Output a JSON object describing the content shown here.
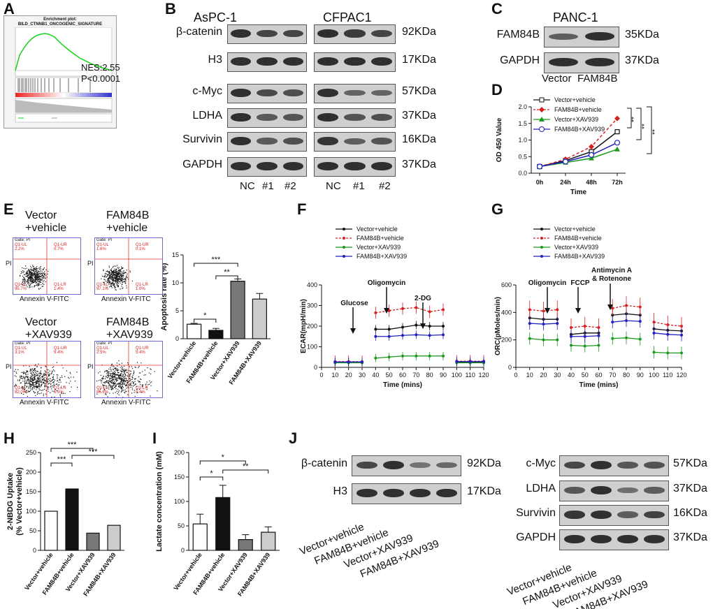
{
  "panels": {
    "A": {
      "letter": "A",
      "title": "Enrichment plot:",
      "subtitle": "BILD_CTNNB1_ONCOGENIC_SIGNATURE",
      "nes": "NES:2.55",
      "p": "P<0.0001"
    },
    "B": {
      "letter": "B",
      "cell1": "AsPC-1",
      "cell2": "CFPAC1",
      "rows": [
        "β-catenin",
        "H3",
        "c-Myc",
        "LDHA",
        "Survivin",
        "GAPDH"
      ],
      "kda": [
        "92KDa",
        "17KDa",
        "57KDa",
        "37KDa",
        "16KDa",
        "37KDa"
      ],
      "lanes": [
        "NC",
        "#1",
        "#2",
        "NC",
        "#1",
        "#2"
      ]
    },
    "C": {
      "letter": "C",
      "cell": "PANC-1",
      "rows": [
        "FAM84B",
        "GAPDH"
      ],
      "kda": [
        "35KDa",
        "37KDa"
      ],
      "lanes": [
        "Vector",
        "FAM84B"
      ]
    },
    "D": {
      "letter": "D",
      "legend": [
        "Vector+vehicle",
        "FAM84B+vehicle",
        "Vector+XAV939",
        "FAM84B+XAV939"
      ],
      "sig": [
        "**",
        "**",
        "**"
      ]
    },
    "E": {
      "letter": "E",
      "plots": [
        {
          "title1": "Vector",
          "title2": "+vehicle",
          "gate": "Gate: PI",
          "q": [
            "Q1-UL",
            "Q1-UR",
            "Q1-LL",
            "Q1-LR"
          ],
          "v": [
            "2.2%",
            "0.7%",
            "95.7%",
            "1.4%"
          ],
          "ylab": "PI",
          "xlab": "Annexin V-FITC"
        },
        {
          "title1": "FAM84B",
          "title2": "+vehicle",
          "gate": "Gate: PI",
          "q": [
            "Q1-UL",
            "Q1-UR",
            "Q1-LL",
            "Q1-LR"
          ],
          "v": [
            "1.6%",
            "0.1%",
            "97.1%",
            "1.0%"
          ],
          "ylab": "PI",
          "xlab": "Annexin V-FITC"
        },
        {
          "title1": "Vector",
          "title2": "+XAV939",
          "gate": "Gate: PI",
          "q": [
            "Q1-UL",
            "Q1-UR",
            "Q1-LL",
            "Q1-LR"
          ],
          "v": [
            "3.1%",
            "9.4%",
            "82.0%",
            "5.5%"
          ],
          "ylab": "PI",
          "xlab": "Annexin V-FITC"
        },
        {
          "title1": "FAM84B",
          "title2": "+XAV939",
          "gate": "Gate: PI",
          "q": [
            "Q1-UL",
            "Q1-UR",
            "Q1-LL",
            "Q1-LR"
          ],
          "v": [
            "2.5%",
            "5.4%",
            "86.6%",
            "5.4%"
          ],
          "ylab": "PI",
          "xlab": "Annexin V-FITC"
        }
      ],
      "sig": [
        "*",
        "***",
        "**"
      ]
    },
    "F": {
      "letter": "F",
      "annotations": [
        "Glucose",
        "Oligomycin",
        "2-DG"
      ]
    },
    "G": {
      "letter": "G",
      "annotations": [
        "Oligomycin",
        "FCCP",
        "Antimycin A",
        "& Rotenone"
      ]
    },
    "H": {
      "letter": "H",
      "sig": [
        "***",
        "***",
        "***"
      ]
    },
    "I": {
      "letter": "I",
      "sig": [
        "*",
        "*",
        "**"
      ]
    },
    "J": {
      "letter": "J",
      "left_rows": [
        "β-catenin",
        "H3"
      ],
      "left_kda": [
        "92KDa",
        "17KDa"
      ],
      "right_rows": [
        "c-Myc",
        "LDHA",
        "Survivin",
        "GAPDH"
      ],
      "right_kda": [
        "57KDa",
        "37KDa",
        "16KDa",
        "37KDa"
      ],
      "lanes": [
        "Vector+vehicle",
        "FAM84B+vehicle",
        "Vector+XAV939",
        "FAM84B+XAV939"
      ]
    }
  },
  "chart_data": [
    {
      "id": "D",
      "type": "line",
      "title": "",
      "xlabel": "Time",
      "ylabel": "OD 450 Value",
      "categories": [
        "0h",
        "24h",
        "48h",
        "72h"
      ],
      "ylim": [
        0,
        2.0
      ],
      "yticks": [
        "0.0",
        "0.5",
        "1.0",
        "1.5",
        "2.0"
      ],
      "series": [
        {
          "name": "Vector+vehicle",
          "values": [
            0.2,
            0.38,
            0.65,
            1.25
          ],
          "color": "#111111",
          "marker": "square-open",
          "dash": false
        },
        {
          "name": "FAM84B+vehicle",
          "values": [
            0.2,
            0.42,
            0.8,
            1.65
          ],
          "color": "#d62020",
          "marker": "diamond",
          "dash": true
        },
        {
          "name": "Vector+XAV939",
          "values": [
            0.2,
            0.32,
            0.45,
            0.72
          ],
          "color": "#1a9a1a",
          "marker": "triangle",
          "dash": false
        },
        {
          "name": "FAM84B+XAV939",
          "values": [
            0.2,
            0.35,
            0.55,
            0.92
          ],
          "color": "#2020c0",
          "marker": "circle-open",
          "dash": false
        }
      ]
    },
    {
      "id": "E",
      "type": "bar",
      "title": "",
      "ylabel": "Apoptosis rate (%)",
      "categories": [
        "Vector+vehicle",
        "FAM84B+vehicle",
        "Vector+XAV939",
        "FAM84B+XAV939"
      ],
      "values": [
        2.6,
        1.5,
        10.3,
        7.1
      ],
      "errors": [
        0.15,
        0.35,
        0.4,
        1.0
      ],
      "ylim": [
        0,
        15
      ],
      "yticks": [
        "0",
        "5",
        "10",
        "15"
      ],
      "fills": [
        "#ffffff",
        "#111111",
        "#777777",
        "#cccccc"
      ]
    },
    {
      "id": "F",
      "type": "line",
      "title": "",
      "xlabel": "Time (mins)",
      "ylabel": "ECAR(mpH/min)",
      "ylim": [
        0,
        400
      ],
      "yticks": [
        "0",
        "100",
        "200",
        "300",
        "400"
      ],
      "x": [
        10,
        20,
        30,
        40,
        50,
        60,
        70,
        80,
        90,
        100,
        110,
        120
      ],
      "series": [
        {
          "name": "Vector+vehicle",
          "values": [
            25,
            25,
            25,
            185,
            185,
            195,
            205,
            200,
            200,
            25,
            25,
            25
          ],
          "color": "#111111",
          "dash": false
        },
        {
          "name": "FAM84B+vehicle",
          "values": [
            28,
            28,
            28,
            265,
            275,
            285,
            290,
            270,
            280,
            30,
            30,
            30
          ],
          "color": "#d62020",
          "dash": true
        },
        {
          "name": "Vector+XAV939",
          "values": [
            22,
            22,
            22,
            45,
            50,
            55,
            55,
            55,
            55,
            22,
            22,
            22
          ],
          "color": "#1a9a1a",
          "dash": false
        },
        {
          "name": "FAM84B+XAV939",
          "values": [
            26,
            26,
            26,
            150,
            150,
            155,
            158,
            155,
            158,
            28,
            28,
            28
          ],
          "color": "#2020c0",
          "dash": false
        }
      ]
    },
    {
      "id": "G",
      "type": "line",
      "title": "",
      "xlabel": "Time (mins)",
      "ylabel": "ORC(pMoles/min)",
      "ylim": [
        0,
        600
      ],
      "yticks": [
        "0",
        "200",
        "400",
        "600"
      ],
      "x": [
        10,
        20,
        30,
        40,
        50,
        60,
        70,
        80,
        90,
        100,
        110,
        120
      ],
      "series": [
        {
          "name": "Vector+vehicle",
          "values": [
            360,
            350,
            350,
            240,
            250,
            250,
            380,
            390,
            380,
            280,
            270,
            265
          ],
          "color": "#111111",
          "dash": false
        },
        {
          "name": "FAM84B+vehicle",
          "values": [
            420,
            410,
            420,
            290,
            300,
            290,
            430,
            450,
            440,
            330,
            310,
            300
          ],
          "color": "#d62020",
          "dash": true
        },
        {
          "name": "Vector+XAV939",
          "values": [
            210,
            200,
            200,
            160,
            155,
            160,
            210,
            215,
            205,
            110,
            105,
            105
          ],
          "color": "#1a9a1a",
          "dash": false
        },
        {
          "name": "FAM84B+XAV939",
          "values": [
            320,
            315,
            320,
            225,
            225,
            230,
            330,
            340,
            335,
            250,
            240,
            235
          ],
          "color": "#2020c0",
          "dash": false
        }
      ]
    },
    {
      "id": "H",
      "type": "bar",
      "title": "",
      "ylabel": "2-NBDG Uptake\n(% Vector+vehicle)",
      "categories": [
        "Vector+vehicle",
        "FAM84B+vehicle",
        "Vector+XAV939",
        "FAM84B+XAV939"
      ],
      "values": [
        100,
        157,
        44,
        64
      ],
      "ylim": [
        0,
        250
      ],
      "yticks": [
        "0",
        "50",
        "100",
        "150",
        "200",
        "250"
      ],
      "fills": [
        "#ffffff",
        "#111111",
        "#777777",
        "#cccccc"
      ]
    },
    {
      "id": "I",
      "type": "bar",
      "title": "",
      "ylabel": "Lactate concentration (mM)",
      "categories": [
        "Vector+vehicle",
        "FAM84B+vehicle",
        "Vector+XAV939",
        "FAM84B+XAV939"
      ],
      "values": [
        54,
        108,
        22,
        37
      ],
      "errors": [
        20,
        25,
        10,
        11
      ],
      "ylim": [
        0,
        200
      ],
      "yticks": [
        "0",
        "50",
        "100",
        "150",
        "200"
      ],
      "fills": [
        "#ffffff",
        "#111111",
        "#777777",
        "#cccccc"
      ]
    }
  ]
}
